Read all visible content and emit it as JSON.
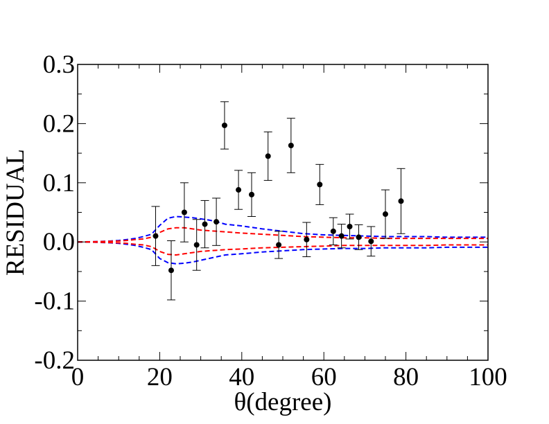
{
  "chart_data": {
    "type": "scatter",
    "title": "",
    "xlabel": "θ(degree)",
    "ylabel": "RESIDUAL",
    "xlim": [
      0,
      100
    ],
    "ylim": [
      -0.2,
      0.3
    ],
    "x_ticks": [
      {
        "value": 0,
        "label": "0"
      },
      {
        "value": 20,
        "label": "20"
      },
      {
        "value": 40,
        "label": "40"
      },
      {
        "value": 60,
        "label": "60"
      },
      {
        "value": 80,
        "label": "80"
      },
      {
        "value": 100,
        "label": "100"
      }
    ],
    "y_ticks": [
      {
        "value": -0.2,
        "label": "-0.2"
      },
      {
        "value": -0.1,
        "label": "-0.1"
      },
      {
        "value": 0.0,
        "label": "0.0"
      },
      {
        "value": 0.1,
        "label": "0.1"
      },
      {
        "value": 0.2,
        "label": "0.2"
      },
      {
        "value": 0.3,
        "label": "0.3"
      }
    ],
    "grid": false,
    "points": [
      {
        "x": 19.0,
        "y": 0.01,
        "err": 0.05
      },
      {
        "x": 22.8,
        "y": -0.048,
        "err": 0.05
      },
      {
        "x": 26.0,
        "y": 0.05,
        "err": 0.05
      },
      {
        "x": 29.0,
        "y": -0.005,
        "err": 0.043
      },
      {
        "x": 31.0,
        "y": 0.03,
        "err": 0.04
      },
      {
        "x": 33.8,
        "y": 0.034,
        "err": 0.04
      },
      {
        "x": 35.8,
        "y": 0.197,
        "err": 0.04
      },
      {
        "x": 39.2,
        "y": 0.088,
        "err": 0.033
      },
      {
        "x": 42.4,
        "y": 0.08,
        "err": 0.037
      },
      {
        "x": 46.4,
        "y": 0.145,
        "err": 0.041
      },
      {
        "x": 49.0,
        "y": -0.005,
        "err": 0.023
      },
      {
        "x": 52.0,
        "y": 0.163,
        "err": 0.046
      },
      {
        "x": 55.8,
        "y": 0.004,
        "err": 0.029
      },
      {
        "x": 59.0,
        "y": 0.097,
        "err": 0.034
      },
      {
        "x": 62.3,
        "y": 0.018,
        "err": 0.023
      },
      {
        "x": 64.3,
        "y": 0.01,
        "err": 0.02
      },
      {
        "x": 66.3,
        "y": 0.026,
        "err": 0.021
      },
      {
        "x": 68.5,
        "y": 0.008,
        "err": 0.021
      },
      {
        "x": 71.5,
        "y": 0.001,
        "err": 0.025
      },
      {
        "x": 75.0,
        "y": 0.047,
        "err": 0.041
      },
      {
        "x": 78.8,
        "y": 0.069,
        "err": 0.055
      }
    ],
    "bands": [
      {
        "color": "#0000ff",
        "x": [
          0,
          4,
          8,
          10,
          12,
          14,
          16,
          18,
          20,
          22,
          24,
          26,
          28,
          30,
          32,
          34,
          36,
          40,
          45,
          50,
          55,
          60,
          65,
          70,
          75,
          80,
          85,
          90,
          95,
          100
        ],
        "upper": [
          0.0,
          0.0005,
          0.0015,
          0.0025,
          0.004,
          0.006,
          0.009,
          0.013,
          0.028,
          0.04,
          0.043,
          0.042,
          0.041,
          0.039,
          0.037,
          0.034,
          0.03,
          0.027,
          0.022,
          0.018,
          0.014,
          0.012,
          0.011,
          0.01,
          0.009,
          0.009,
          0.009,
          0.008,
          0.008,
          0.008
        ],
        "lower": [
          0.0,
          -0.0005,
          -0.0015,
          -0.0025,
          -0.004,
          -0.006,
          -0.009,
          -0.013,
          -0.028,
          -0.035,
          -0.037,
          -0.036,
          -0.034,
          -0.031,
          -0.028,
          -0.025,
          -0.022,
          -0.02,
          -0.017,
          -0.015,
          -0.013,
          -0.012,
          -0.011,
          -0.011,
          -0.01,
          -0.01,
          -0.01,
          -0.009,
          -0.009,
          -0.009
        ]
      },
      {
        "color": "#ff0000",
        "x": [
          0,
          4,
          8,
          10,
          12,
          14,
          16,
          18,
          20,
          22,
          24,
          26,
          28,
          30,
          32,
          34,
          36,
          40,
          45,
          50,
          55,
          60,
          65,
          70,
          75,
          80,
          85,
          90,
          95,
          100
        ],
        "upper": [
          0.0,
          0.0003,
          0.001,
          0.0015,
          0.0025,
          0.004,
          0.005,
          0.008,
          0.016,
          0.022,
          0.024,
          0.024,
          0.022,
          0.02,
          0.019,
          0.018,
          0.017,
          0.015,
          0.013,
          0.011,
          0.009,
          0.008,
          0.007,
          0.007,
          0.006,
          0.006,
          0.006,
          0.006,
          0.006,
          0.006
        ],
        "lower": [
          0.0,
          -0.0003,
          -0.001,
          -0.0015,
          -0.0025,
          -0.004,
          -0.005,
          -0.008,
          -0.016,
          -0.021,
          -0.022,
          -0.02,
          -0.018,
          -0.016,
          -0.015,
          -0.014,
          -0.013,
          -0.012,
          -0.01,
          -0.009,
          -0.008,
          -0.007,
          -0.006,
          -0.006,
          -0.006,
          -0.006,
          -0.006,
          -0.005,
          -0.005,
          -0.005
        ]
      }
    ]
  }
}
